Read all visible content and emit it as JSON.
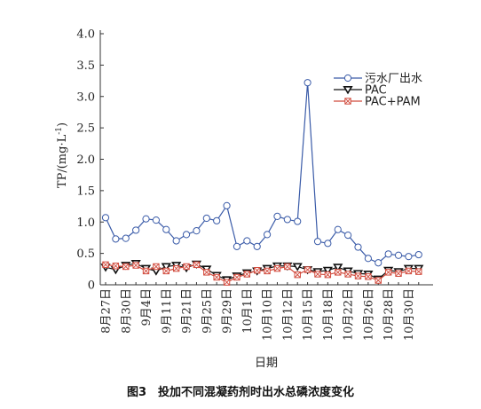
{
  "chart_data": {
    "type": "line",
    "ylabel": "TP/(mg·L⁻¹)",
    "ylabel_base": "TP/(mg·L",
    "ylabel_sup": "-1",
    "ylabel_close": ")",
    "xlabel": "日期",
    "caption": "图3　投加不同混凝药剂时出水总磷浓度变化",
    "ylim": [
      0,
      4.0
    ],
    "yticks": [
      "0",
      "0.5",
      "1.0",
      "1.5",
      "2.0",
      "2.5",
      "3.0",
      "3.5",
      "4.0"
    ],
    "ytick_values": [
      0,
      0.5,
      1.0,
      1.5,
      2.0,
      2.5,
      3.0,
      3.5,
      4.0
    ],
    "xtick_labels": [
      "8月27日",
      "8月30日",
      "9月4日",
      "9月11日",
      "9月21日",
      "9月25日",
      "9月29日",
      "10月1日",
      "10月10日",
      "10月12日",
      "10月15日",
      "10月18日",
      "10月22日",
      "10月26日",
      "10月28日",
      "10月30日"
    ],
    "xtick_index": [
      0,
      2,
      4,
      6,
      8,
      10,
      12,
      14,
      16,
      18,
      20,
      22,
      24,
      26,
      28,
      30
    ],
    "n_points": 32,
    "legend_position": "top-right",
    "series": [
      {
        "name": "污水厂出水",
        "color": "#3a5ba8",
        "marker": "circle",
        "values": [
          1.07,
          0.73,
          0.74,
          0.87,
          1.05,
          1.03,
          0.88,
          0.7,
          0.8,
          0.86,
          1.06,
          1.02,
          1.26,
          0.61,
          0.7,
          0.61,
          0.8,
          1.09,
          1.04,
          1.01,
          3.22,
          0.69,
          0.66,
          0.88,
          0.79,
          0.6,
          0.42,
          0.35,
          0.49,
          0.47,
          0.45,
          0.48
        ]
      },
      {
        "name": "PAC",
        "color": "#111111",
        "marker": "triangle-down",
        "values": [
          0.28,
          0.24,
          0.31,
          0.34,
          0.26,
          0.22,
          0.29,
          0.31,
          0.27,
          0.33,
          0.25,
          0.15,
          0.08,
          0.14,
          0.19,
          0.22,
          0.26,
          0.3,
          0.3,
          0.29,
          0.24,
          0.21,
          0.23,
          0.28,
          0.22,
          0.18,
          0.17,
          0.09,
          0.23,
          0.21,
          0.26,
          0.26
        ]
      },
      {
        "name": "PAC+PAM",
        "color": "#d14a3c",
        "marker": "square-x",
        "values": [
          0.32,
          0.3,
          0.29,
          0.31,
          0.22,
          0.29,
          0.22,
          0.26,
          0.29,
          0.32,
          0.2,
          0.12,
          0.04,
          0.12,
          0.17,
          0.23,
          0.22,
          0.26,
          0.29,
          0.16,
          0.24,
          0.17,
          0.16,
          0.2,
          0.17,
          0.14,
          0.13,
          0.07,
          0.2,
          0.18,
          0.22,
          0.21
        ]
      }
    ]
  }
}
